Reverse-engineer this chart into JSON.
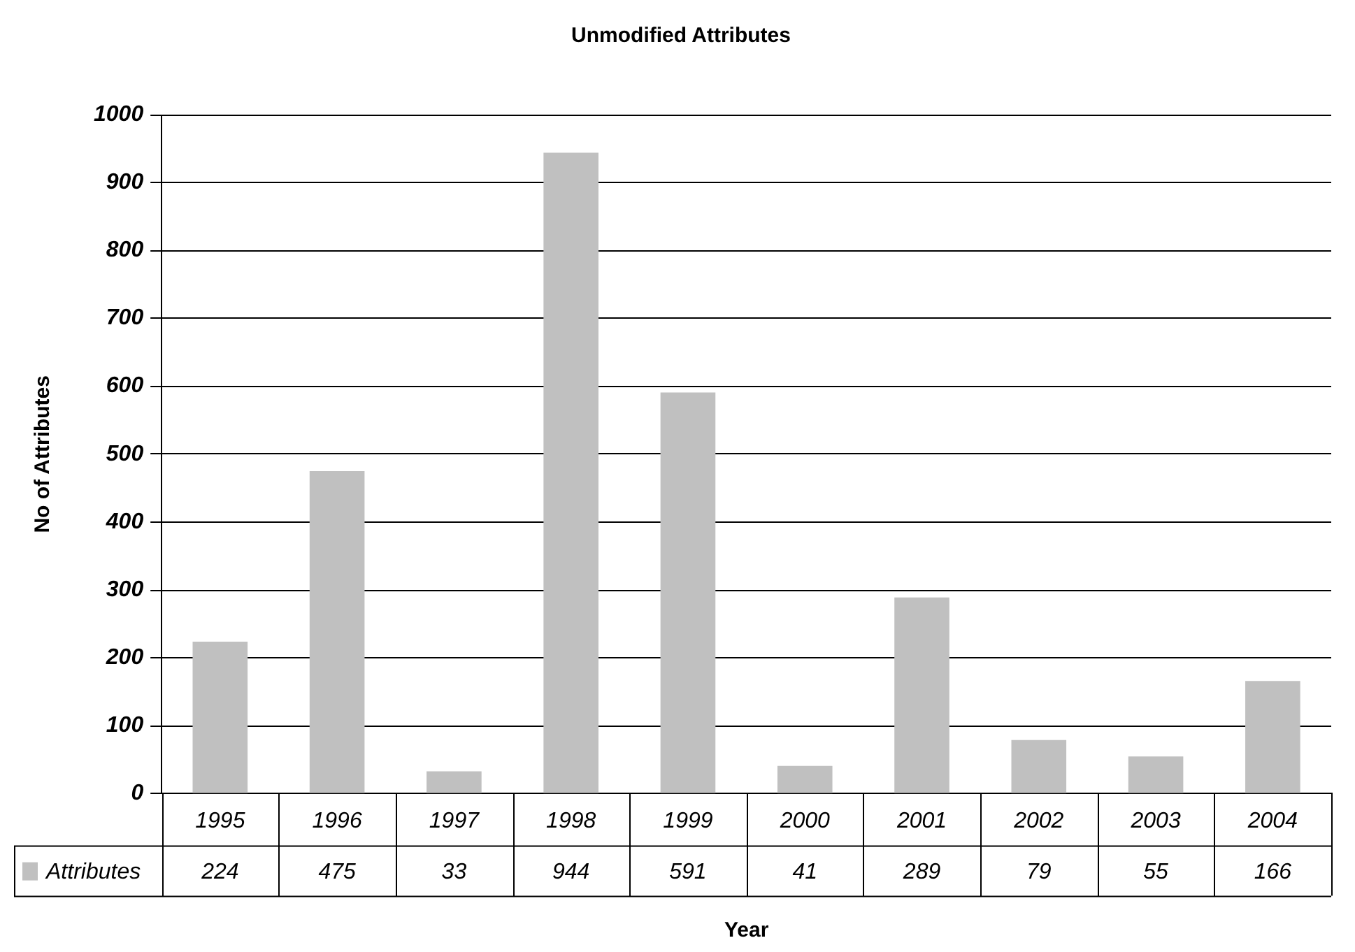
{
  "chart_data": {
    "type": "bar",
    "title": "Unmodified Attributes",
    "xlabel": "Year",
    "ylabel": "No of Attributes",
    "categories": [
      "1995",
      "1996",
      "1997",
      "1998",
      "1999",
      "2000",
      "2001",
      "2002",
      "2003",
      "2004"
    ],
    "series": [
      {
        "name": "Attributes",
        "color": "#c0c0c0",
        "values": [
          224,
          475,
          33,
          944,
          591,
          41,
          289,
          79,
          55,
          166
        ]
      }
    ],
    "ylim": [
      0,
      1000
    ],
    "yticks": [
      0,
      100,
      200,
      300,
      400,
      500,
      600,
      700,
      800,
      900,
      1000
    ],
    "grid": "y",
    "data_labels": true,
    "legend": "bottom left"
  }
}
